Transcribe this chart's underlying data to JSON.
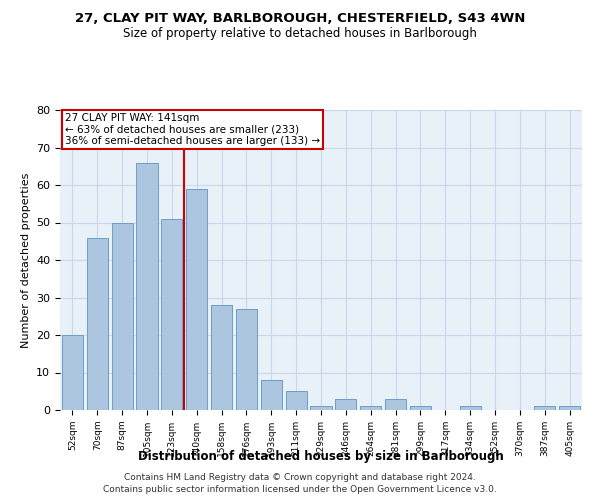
{
  "title_line1": "27, CLAY PIT WAY, BARLBOROUGH, CHESTERFIELD, S43 4WN",
  "title_line2": "Size of property relative to detached houses in Barlborough",
  "xlabel": "Distribution of detached houses by size in Barlborough",
  "ylabel": "Number of detached properties",
  "categories": [
    "52sqm",
    "70sqm",
    "87sqm",
    "105sqm",
    "123sqm",
    "140sqm",
    "158sqm",
    "176sqm",
    "193sqm",
    "211sqm",
    "229sqm",
    "246sqm",
    "264sqm",
    "281sqm",
    "299sqm",
    "317sqm",
    "334sqm",
    "352sqm",
    "370sqm",
    "387sqm",
    "405sqm"
  ],
  "values": [
    20,
    46,
    50,
    66,
    51,
    59,
    28,
    27,
    8,
    5,
    1,
    3,
    1,
    3,
    1,
    0,
    1,
    0,
    0,
    1,
    1
  ],
  "bar_color": "#adc6e0",
  "bar_edge_color": "#6b9ec8",
  "annotation_text": "27 CLAY PIT WAY: 141sqm\n← 63% of detached houses are smaller (233)\n36% of semi-detached houses are larger (133) →",
  "annotation_box_color": "#ffffff",
  "annotation_box_edge_color": "#cc0000",
  "vline_color": "#cc0000",
  "vline_x_index": 5,
  "ylim": [
    0,
    80
  ],
  "yticks": [
    0,
    10,
    20,
    30,
    40,
    50,
    60,
    70,
    80
  ],
  "grid_color": "#c8d8ea",
  "background_color": "#e8f0f8",
  "footer_line1": "Contains HM Land Registry data © Crown copyright and database right 2024.",
  "footer_line2": "Contains public sector information licensed under the Open Government Licence v3.0."
}
